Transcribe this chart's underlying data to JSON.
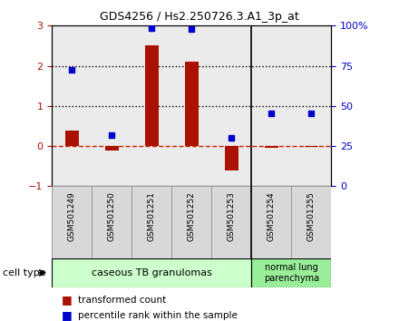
{
  "title": "GDS4256 / Hs2.250726.3.A1_3p_at",
  "samples": [
    "GSM501249",
    "GSM501250",
    "GSM501251",
    "GSM501252",
    "GSM501253",
    "GSM501254",
    "GSM501255"
  ],
  "transformed_count": [
    0.38,
    -0.12,
    2.5,
    2.1,
    -0.6,
    -0.05,
    -0.02
  ],
  "percentile_rank": [
    1.9,
    0.28,
    2.95,
    2.92,
    0.2,
    0.82,
    0.82
  ],
  "ylim_left": [
    -1,
    3
  ],
  "ylim_right": [
    0,
    100
  ],
  "yticks_left": [
    -1,
    0,
    1,
    2,
    3
  ],
  "yticks_right": [
    0,
    25,
    50,
    75,
    100
  ],
  "ytick_labels_right": [
    "0",
    "25",
    "50",
    "75",
    "100%"
  ],
  "hline_colors": [
    "#cc2200",
    "#000000",
    "#000000"
  ],
  "bar_color": "#aa1100",
  "dot_color": "#0000cc",
  "group1_label": "caseous TB granulomas",
  "group1_color": "#ccffcc",
  "group2_label": "normal lung\nparenchyma",
  "group2_color": "#99ee99",
  "cell_type_label": "cell type",
  "legend_bar_label": "transformed count",
  "legend_dot_label": "percentile rank within the sample",
  "background_color": "#ffffff",
  "plot_bg_color": "#ebebeb"
}
